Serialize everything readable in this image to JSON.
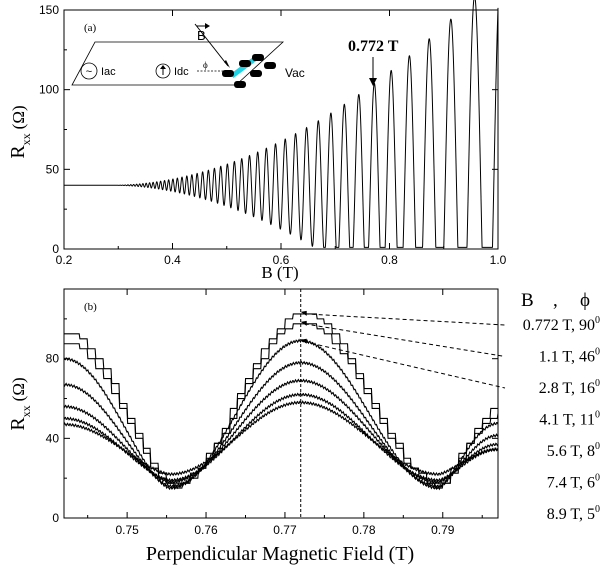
{
  "chart_data": [
    {
      "panel": "a",
      "type": "line",
      "panel_label": "(a)",
      "xlabel": "B (T)",
      "ylabel_main": "R",
      "ylabel_sub": "xx",
      "ylabel_unit": "(Ω)",
      "xlim": [
        0.2,
        1.0
      ],
      "ylim": [
        0,
        150
      ],
      "xticks": [
        "0.2",
        "0.4",
        "0.6",
        "0.8",
        "1.0"
      ],
      "yticks": [
        "0",
        "50",
        "100",
        "150"
      ],
      "annotation": "0.772 T",
      "annotation_x": 0.772,
      "annotation_y": 104,
      "series_description": "Shubnikov–de Haas oscillations: baseline ~40 Ω, amplitude growing with B; peaks approx",
      "peaks": [
        {
          "x": 0.772,
          "y": 104
        },
        {
          "x": 0.81,
          "y": 111
        },
        {
          "x": 0.85,
          "y": 118
        },
        {
          "x": 0.9,
          "y": 127
        },
        {
          "x": 0.95,
          "y": 138
        },
        {
          "x": 1.0,
          "y": 136
        }
      ],
      "inset": {
        "source_ac": "Iac",
        "source_dc": "Idc",
        "angle": "ϕ",
        "field": "B",
        "voltage": "Vac",
        "sample_color": "#22d3e6"
      }
    },
    {
      "panel": "b",
      "type": "line",
      "panel_label": "(b)",
      "xlabel": "Perpendicular Magnetic Field (T)",
      "ylabel_main": "R",
      "ylabel_sub": "xx",
      "ylabel_unit": "(Ω)",
      "xlim": [
        0.742,
        0.797
      ],
      "ylim": [
        0,
        115
      ],
      "xticks": [
        "0.75",
        "0.76",
        "0.77",
        "0.78",
        "0.79"
      ],
      "yticks": [
        "0",
        "40",
        "80"
      ],
      "vline_x": 0.772,
      "min_positions": [
        0.7555,
        0.7895
      ],
      "legend_header_b": "B",
      "legend_header_sep": ",",
      "legend_header_phi": "ϕ",
      "series": [
        {
          "name": "0.772 T, 90",
          "sup": "0",
          "peak": 103,
          "min": 17,
          "left_edge": 93,
          "staircase": true
        },
        {
          "name": "1.1 T, 46",
          "sup": "0",
          "peak": 98,
          "min": 16,
          "left_edge": 88,
          "staircase": true
        },
        {
          "name": "2.8 T, 16",
          "sup": "0",
          "peak": 89,
          "min": 15,
          "left_edge": 80,
          "staircase": false
        },
        {
          "name": "4.1 T, 11",
          "sup": "0",
          "peak": 78,
          "min": 16,
          "left_edge": 67,
          "staircase": false
        },
        {
          "name": "5.6 T, 8",
          "sup": "0",
          "peak": 69,
          "min": 18,
          "left_edge": 56,
          "staircase": false
        },
        {
          "name": "7.4 T, 6",
          "sup": "0",
          "peak": 62,
          "min": 19,
          "left_edge": 50,
          "staircase": false
        },
        {
          "name": "8.9 T, 5",
          "sup": "0",
          "peak": 58,
          "min": 22,
          "left_edge": 47,
          "staircase": false
        }
      ]
    }
  ]
}
